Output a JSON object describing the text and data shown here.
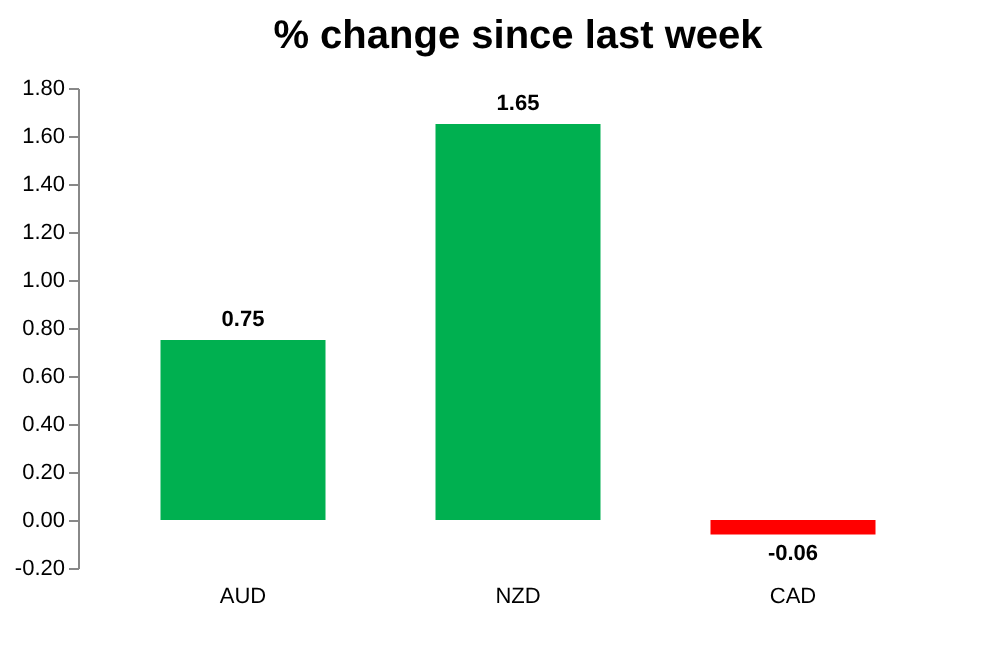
{
  "chart_data": {
    "type": "bar",
    "title": "% change since last week",
    "categories": [
      "AUD",
      "NZD",
      "CAD"
    ],
    "values": [
      0.75,
      1.65,
      -0.06
    ],
    "colors": [
      "#00b050",
      "#00b050",
      "#ff0000"
    ],
    "ylim": [
      -0.2,
      1.8
    ],
    "yticks": [
      {
        "value": -0.2,
        "label": "-0.20"
      },
      {
        "value": 0,
        "label": "0.00"
      },
      {
        "value": 0.2,
        "label": "0.20"
      },
      {
        "value": 0.4,
        "label": "0.40"
      },
      {
        "value": 0.6,
        "label": "0.60"
      },
      {
        "value": 0.8,
        "label": "0.80"
      },
      {
        "value": 1,
        "label": "1.00"
      },
      {
        "value": 1.2,
        "label": "1.20"
      },
      {
        "value": 1.4,
        "label": "1.40"
      },
      {
        "value": 1.6,
        "label": "1.60"
      },
      {
        "value": 1.8,
        "label": "1.80"
      }
    ],
    "data_labels": true,
    "grid": false
  }
}
